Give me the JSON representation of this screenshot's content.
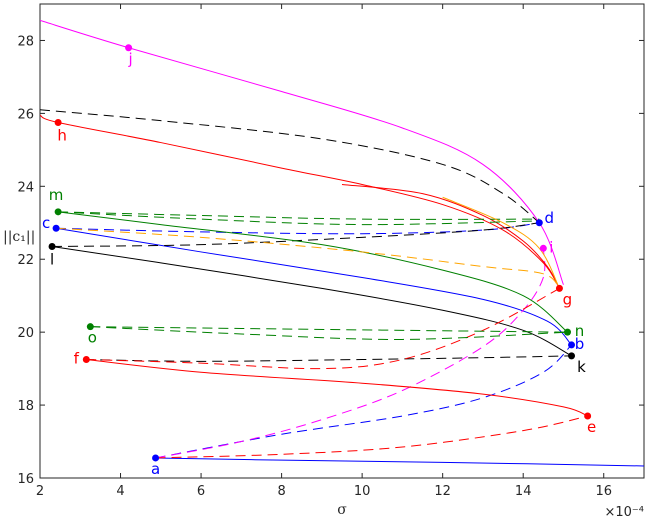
{
  "chart_data": {
    "type": "line",
    "xlabel": "σ",
    "ylabel": "||c₁||",
    "x_exponent": "×10⁻⁴",
    "xlim": [
      2,
      17
    ],
    "ylim": [
      16,
      29
    ],
    "xticks": [
      2,
      4,
      6,
      8,
      10,
      12,
      14,
      16
    ],
    "yticks": [
      16,
      18,
      20,
      22,
      24,
      26,
      28
    ],
    "grid": false,
    "colors": {
      "blue": "#0000ff",
      "red": "#ff0000",
      "green": "#008000",
      "magenta": "#ff00ff",
      "black": "#000000",
      "orange": "#ffa500"
    },
    "series": [
      {
        "color": "blue",
        "style": "solid",
        "points": [
          [
            4.87,
            16.55
          ],
          [
            8,
            16.49
          ],
          [
            12,
            16.43
          ],
          [
            17,
            16.33
          ]
        ]
      },
      {
        "color": "blue",
        "style": "dashed",
        "points": [
          [
            4.87,
            16.55
          ],
          [
            8,
            17.2
          ],
          [
            11,
            17.7
          ],
          [
            13,
            18.2
          ],
          [
            14.5,
            18.9
          ],
          [
            15.2,
            19.65
          ]
        ]
      },
      {
        "color": "blue",
        "style": "solid",
        "points": [
          [
            2.4,
            22.85
          ],
          [
            6,
            22.2
          ],
          [
            10,
            21.5
          ],
          [
            13,
            20.9
          ],
          [
            14.6,
            20.3
          ],
          [
            15.2,
            19.65
          ]
        ]
      },
      {
        "color": "blue",
        "style": "dashed",
        "points": [
          [
            2.4,
            22.85
          ],
          [
            6,
            22.75
          ],
          [
            10,
            22.7
          ],
          [
            13,
            22.8
          ],
          [
            14.4,
            23.0
          ]
        ]
      },
      {
        "color": "magenta",
        "style": "solid",
        "points": [
          [
            2,
            28.55
          ],
          [
            4.2,
            27.8
          ],
          [
            8,
            26.6
          ],
          [
            11,
            25.6
          ],
          [
            13,
            24.6
          ],
          [
            14.4,
            23.0
          ],
          [
            15,
            21.3
          ]
        ]
      },
      {
        "color": "magenta",
        "style": "dashed",
        "points": [
          [
            4.87,
            16.55
          ],
          [
            7,
            17.0
          ],
          [
            9,
            17.6
          ],
          [
            11,
            18.4
          ],
          [
            13,
            19.6
          ],
          [
            14.0,
            20.6
          ],
          [
            14.5,
            21.5
          ],
          [
            14.5,
            22.3
          ]
        ]
      },
      {
        "color": "black",
        "style": "dashed",
        "points": [
          [
            2,
            26.1
          ],
          [
            5,
            25.8
          ],
          [
            9,
            25.3
          ],
          [
            12,
            24.6
          ],
          [
            13.5,
            23.8
          ],
          [
            14.4,
            23.0
          ]
        ]
      },
      {
        "color": "black",
        "style": "solid",
        "points": [
          [
            2.3,
            22.35
          ],
          [
            5,
            21.9
          ],
          [
            9,
            21.2
          ],
          [
            12,
            20.6
          ],
          [
            14,
            20.05
          ],
          [
            15.2,
            19.35
          ]
        ]
      },
      {
        "color": "black",
        "style": "dashed",
        "points": [
          [
            2.3,
            22.35
          ],
          [
            6,
            22.4
          ],
          [
            10,
            22.6
          ],
          [
            13,
            22.8
          ],
          [
            14.4,
            23.0
          ]
        ]
      },
      {
        "color": "black",
        "style": "dashed",
        "points": [
          [
            3.1,
            19.25
          ],
          [
            6,
            19.2
          ],
          [
            10,
            19.25
          ],
          [
            13,
            19.3
          ],
          [
            15.2,
            19.35
          ]
        ]
      },
      {
        "color": "red",
        "style": "solid",
        "points": [
          [
            2,
            25.95
          ],
          [
            2.45,
            25.75
          ],
          [
            5,
            25.2
          ],
          [
            8,
            24.5
          ],
          [
            10,
            24.05
          ],
          [
            12,
            23.5
          ],
          [
            13.5,
            22.8
          ],
          [
            14.5,
            21.9
          ],
          [
            14.9,
            21.2
          ]
        ]
      },
      {
        "color": "red",
        "style": "solid",
        "points": [
          [
            9.5,
            24.05
          ],
          [
            11.5,
            23.8
          ],
          [
            13,
            23.2
          ],
          [
            14,
            22.5
          ],
          [
            14.6,
            21.8
          ],
          [
            14.9,
            21.2
          ]
        ]
      },
      {
        "color": "red",
        "style": "solid",
        "points": [
          [
            3.15,
            19.25
          ],
          [
            6,
            18.9
          ],
          [
            10,
            18.6
          ],
          [
            13,
            18.3
          ],
          [
            15,
            17.95
          ],
          [
            15.6,
            17.7
          ]
        ]
      },
      {
        "color": "red",
        "style": "dashed",
        "points": [
          [
            3.15,
            19.25
          ],
          [
            6,
            19.15
          ],
          [
            9,
            19.0
          ],
          [
            11,
            19.25
          ],
          [
            13,
            20.05
          ],
          [
            14.9,
            21.2
          ]
        ]
      },
      {
        "color": "red",
        "style": "dashed",
        "points": [
          [
            4.87,
            16.55
          ],
          [
            8,
            16.65
          ],
          [
            11,
            16.85
          ],
          [
            14,
            17.3
          ],
          [
            15.6,
            17.7
          ]
        ]
      },
      {
        "color": "green",
        "style": "dashed",
        "points": [
          [
            2.45,
            23.3
          ],
          [
            6,
            23.2
          ],
          [
            10,
            23.1
          ],
          [
            14.4,
            23.1
          ]
        ]
      },
      {
        "color": "green",
        "style": "dashed",
        "points": [
          [
            2.45,
            23.3
          ],
          [
            6,
            23.1
          ],
          [
            10,
            22.95
          ],
          [
            14.4,
            23.05
          ]
        ]
      },
      {
        "color": "green",
        "style": "solid",
        "points": [
          [
            2.45,
            23.3
          ],
          [
            5,
            22.95
          ],
          [
            9,
            22.4
          ],
          [
            12,
            21.7
          ],
          [
            14,
            21.0
          ],
          [
            15.1,
            20.0
          ]
        ]
      },
      {
        "color": "green",
        "style": "dashed",
        "points": [
          [
            3.25,
            20.15
          ],
          [
            7,
            20.1
          ],
          [
            11,
            20.05
          ],
          [
            15.1,
            20.0
          ]
        ]
      },
      {
        "color": "green",
        "style": "dashed",
        "points": [
          [
            3.25,
            20.15
          ],
          [
            7,
            19.95
          ],
          [
            11,
            19.8
          ],
          [
            15.1,
            20.0
          ]
        ]
      },
      {
        "color": "orange",
        "style": "dashed",
        "points": [
          [
            2.4,
            22.85
          ],
          [
            6,
            22.6
          ],
          [
            10,
            22.2
          ],
          [
            13,
            21.8
          ],
          [
            14.5,
            21.6
          ],
          [
            14.9,
            21.2
          ]
        ]
      },
      {
        "color": "orange",
        "style": "solid",
        "points": [
          [
            12,
            23.7
          ],
          [
            13.5,
            23.0
          ],
          [
            14.4,
            22.3
          ],
          [
            14.9,
            21.2
          ]
        ]
      }
    ],
    "points": [
      {
        "label": "a",
        "x": 4.87,
        "y": 16.55,
        "color": "blue"
      },
      {
        "label": "b",
        "x": 15.2,
        "y": 19.65,
        "color": "blue"
      },
      {
        "label": "c",
        "x": 2.4,
        "y": 22.85,
        "color": "blue"
      },
      {
        "label": "d",
        "x": 14.4,
        "y": 23.0,
        "color": "blue"
      },
      {
        "label": "e",
        "x": 15.6,
        "y": 17.7,
        "color": "red"
      },
      {
        "label": "f",
        "x": 3.15,
        "y": 19.25,
        "color": "red"
      },
      {
        "label": "g",
        "x": 14.9,
        "y": 21.2,
        "color": "red"
      },
      {
        "label": "h",
        "x": 2.45,
        "y": 25.75,
        "color": "red"
      },
      {
        "label": "i",
        "x": 14.5,
        "y": 22.3,
        "color": "magenta"
      },
      {
        "label": "j",
        "x": 4.2,
        "y": 27.8,
        "color": "magenta"
      },
      {
        "label": "k",
        "x": 15.2,
        "y": 19.35,
        "color": "black"
      },
      {
        "label": "l",
        "x": 2.3,
        "y": 22.35,
        "color": "black"
      },
      {
        "label": "m",
        "x": 2.45,
        "y": 23.3,
        "color": "green"
      },
      {
        "label": "n",
        "x": 15.1,
        "y": 20.0,
        "color": "green"
      },
      {
        "label": "o",
        "x": 3.25,
        "y": 20.15,
        "color": "green"
      }
    ]
  }
}
